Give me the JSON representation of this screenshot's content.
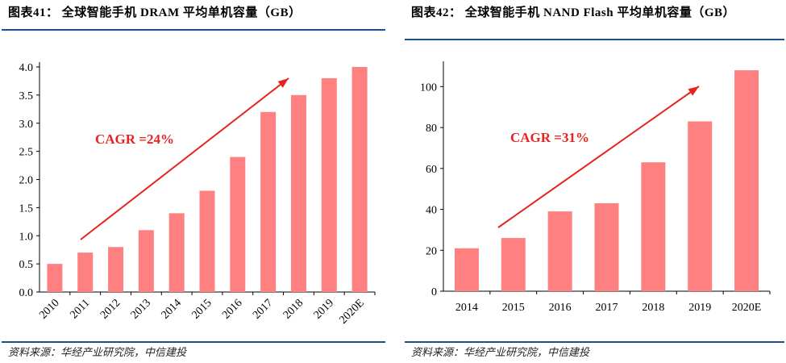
{
  "left": {
    "title": "图表41：  全球智能手机 DRAM 平均单机容量（GB）",
    "source": "资料来源：华经产业研究院，中信建投"
  },
  "right": {
    "title": "图表42：  全球智能手机  NAND  Flash  平均单机容量（GB）",
    "source": "资料来源：华经产业研究院，中信建投"
  },
  "colors": {
    "bar": "#ff8080",
    "arrow": "#e8231f",
    "rule": "#1f4e8c"
  },
  "chart_data": [
    {
      "type": "bar",
      "title": "全球智能手机 DRAM 平均单机容量（GB）",
      "categories": [
        "2010",
        "2011",
        "2012",
        "2013",
        "2014",
        "2015",
        "2016",
        "2017",
        "2018",
        "2019",
        "2020E"
      ],
      "values": [
        0.5,
        0.7,
        0.8,
        1.1,
        1.4,
        1.8,
        2.4,
        3.2,
        3.5,
        3.8,
        4.0
      ],
      "yticks": [
        "0.0",
        "0.5",
        "1.0",
        "1.5",
        "2.0",
        "2.5",
        "3.0",
        "3.5",
        "4.0"
      ],
      "ylim": [
        0,
        4.0
      ],
      "annotation": "CAGR =24%",
      "xlabel": "",
      "ylabel": ""
    },
    {
      "type": "bar",
      "title": "全球智能手机 NAND Flash 平均单机容量（GB）",
      "categories": [
        "2014",
        "2015",
        "2016",
        "2017",
        "2018",
        "2019",
        "2020E"
      ],
      "values": [
        21,
        26,
        39,
        43,
        63,
        83,
        108
      ],
      "yticks": [
        "0",
        "20",
        "40",
        "60",
        "80",
        "100"
      ],
      "ylim": [
        0,
        110
      ],
      "annotation": "CAGR =31%",
      "xlabel": "",
      "ylabel": ""
    }
  ]
}
